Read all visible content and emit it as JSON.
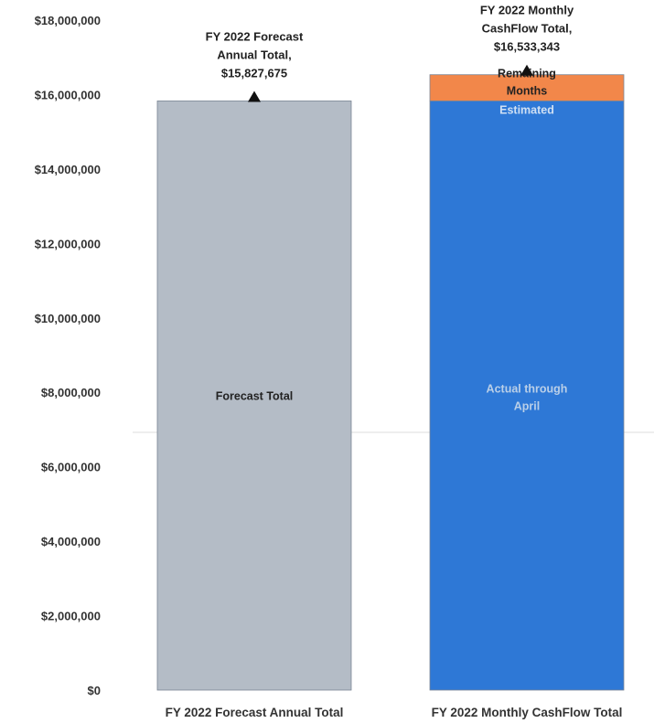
{
  "chart_data": {
    "type": "bar",
    "stacked": true,
    "title": "",
    "xlabel": "",
    "ylabel": "",
    "ylim": [
      0,
      18000000
    ],
    "yticks": [
      "$0",
      "$2,000,000",
      "$4,000,000",
      "$6,000,000",
      "$8,000,000",
      "$10,000,000",
      "$12,000,000",
      "$14,000,000",
      "$16,000,000",
      "$18,000,000"
    ],
    "ytick_values": [
      0,
      2000000,
      4000000,
      6000000,
      8000000,
      10000000,
      12000000,
      14000000,
      16000000,
      18000000
    ],
    "categories": [
      "FY 2022 Forecast Annual Total",
      "FY 2022 Monthly CashFlow Total"
    ],
    "series": [
      {
        "name": "Forecast Total",
        "values": [
          15827675,
          0
        ],
        "color": "#b4bcc6"
      },
      {
        "name": "Actual through April",
        "values": [
          0,
          15830000
        ],
        "color": "#2e78d6"
      },
      {
        "name": "Estimated Remaining Months",
        "values": [
          0,
          703343
        ],
        "color": "#f2874a"
      }
    ],
    "segment_labels": [
      {
        "bar": 0,
        "series": 0,
        "lines": [
          "Forecast Total"
        ],
        "color": "#222222"
      },
      {
        "bar": 1,
        "series": 1,
        "lines": [
          "Actual through",
          "April"
        ],
        "color": "#b9cfe8"
      },
      {
        "bar": 1,
        "series": 2,
        "lines": [
          "Remaining",
          "Months"
        ],
        "color": "#222222"
      },
      {
        "bar": 1,
        "series": 2,
        "lines": [
          "Estimated"
        ],
        "color": "#cfe0f4",
        "position": "bottom"
      }
    ],
    "annotations": [
      {
        "bar": 0,
        "value": 15827675,
        "lines": [
          "FY 2022 Forecast",
          "Annual Total,",
          "$15,827,675"
        ]
      },
      {
        "bar": 1,
        "value": 16533343,
        "lines": [
          "FY 2022 Monthly",
          "CashFlow Total,",
          "$16,533,343"
        ]
      }
    ],
    "grid": false,
    "legend": "none"
  }
}
